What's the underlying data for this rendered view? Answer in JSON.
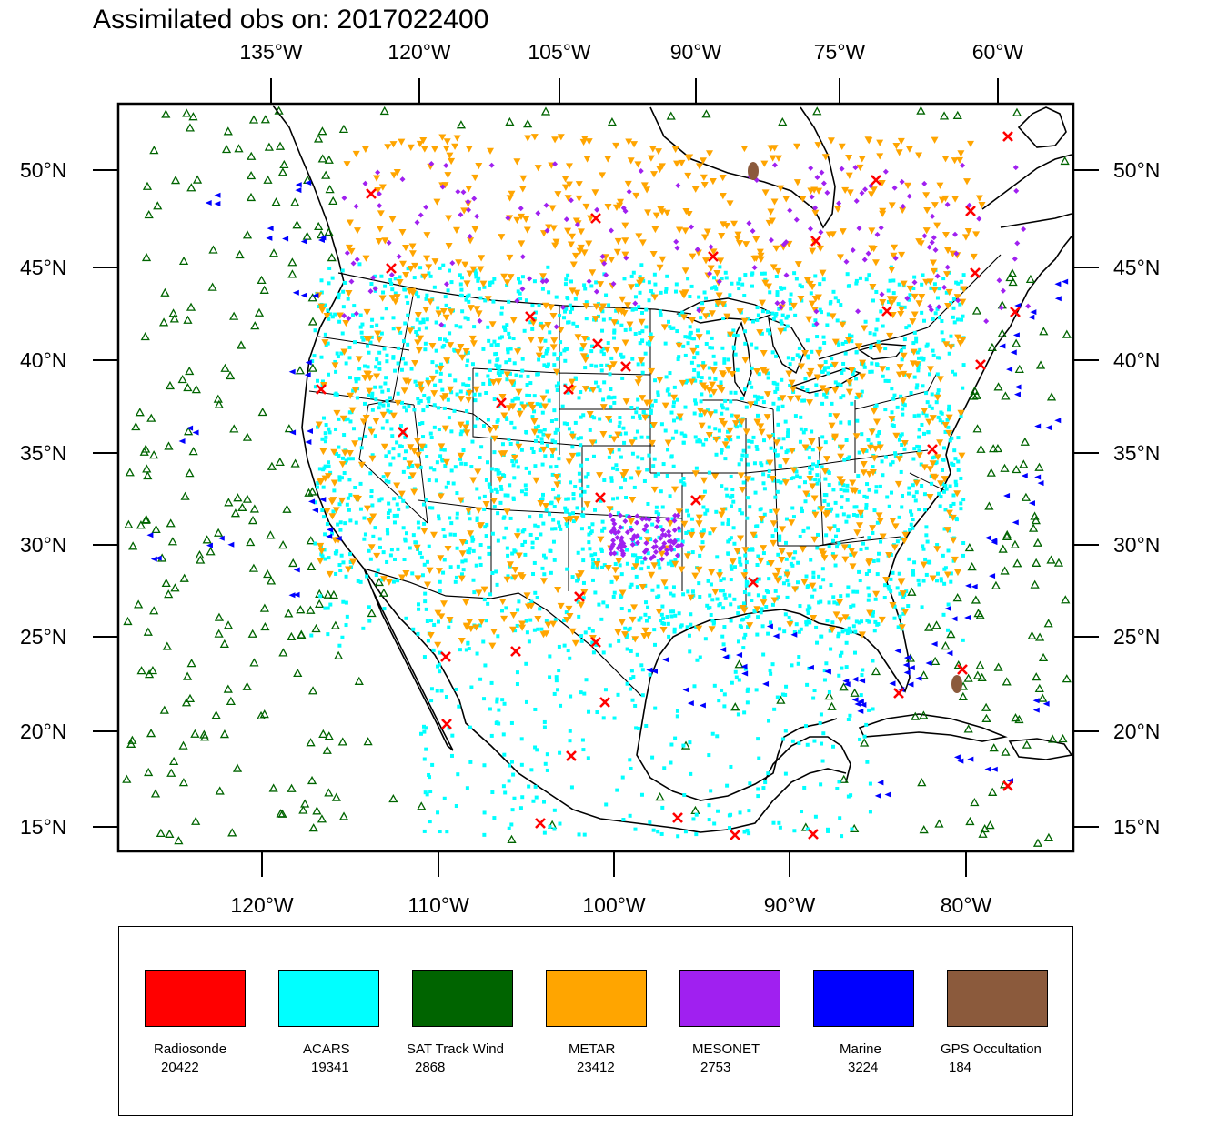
{
  "title": "Assimilated obs on: 2017022400",
  "axes": {
    "top_ticks": [
      "135°W",
      "120°W",
      "105°W",
      "90°W",
      "75°W",
      "60°W"
    ],
    "bottom_ticks": [
      "120°W",
      "110°W",
      "100°W",
      "90°W",
      "80°W"
    ],
    "left_ticks": [
      "50°N",
      "45°N",
      "40°N",
      "35°N",
      "30°N",
      "25°N",
      "20°N",
      "15°N"
    ],
    "right_ticks": [
      "50°N",
      "45°N",
      "40°N",
      "35°N",
      "30°N",
      "25°N",
      "20°N",
      "15°N"
    ],
    "lat_values": [
      50,
      45,
      40,
      35,
      30,
      25,
      20,
      15
    ],
    "lon_bottom_values": [
      -120,
      -110,
      -100,
      -90,
      -80
    ],
    "lat_range": [
      14.7,
      54.4
    ],
    "lon_range": [
      -128.2,
      -74.4
    ]
  },
  "legend": [
    {
      "label": "Radiosonde",
      "count": "20422",
      "color": "#ff0000",
      "marker": "x"
    },
    {
      "label": "ACARS",
      "count": "19341",
      "color": "#00ffff",
      "marker": "square"
    },
    {
      "label": "SAT Track Wind",
      "count": "2868",
      "color": "#006400",
      "marker": "triangle-up"
    },
    {
      "label": "METAR",
      "count": "23412",
      "color": "#ffa500",
      "marker": "triangle-down"
    },
    {
      "label": "MESONET",
      "count": "2753",
      "color": "#a020f0",
      "marker": "diamond"
    },
    {
      "label": "Marine",
      "count": "3224",
      "color": "#0000ff",
      "marker": "triangle-left"
    },
    {
      "label": "GPS Occultation",
      "count": "184",
      "color": "#8b5a3c",
      "marker": "blob"
    }
  ]
}
